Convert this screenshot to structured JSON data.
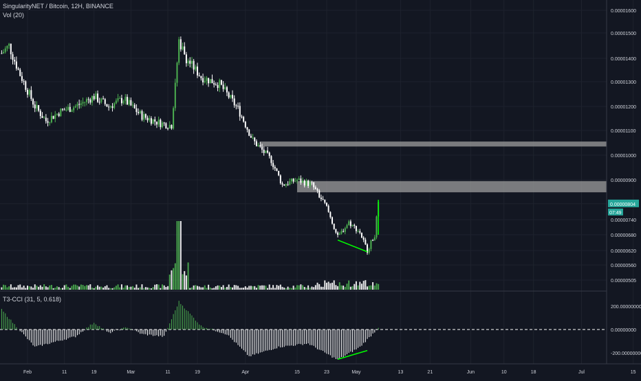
{
  "header": {
    "title": "SingularityNET / Bitcoin, 12H, BINANCE",
    "volume_label": "Vol (20)"
  },
  "oscillator": {
    "label": "T3-CCI (31, 5, 0.618)",
    "ticks": [
      "200.00000000",
      "0.00000000",
      "-200.00000000"
    ],
    "tick_values": [
      200,
      0,
      -200
    ]
  },
  "price_axis": {
    "ticks": [
      "0.00001600",
      "0.00001500",
      "0.00001400",
      "0.00001300",
      "0.00001200",
      "0.00001100",
      "0.00001000",
      "0.00000900",
      "0.00000804",
      "0.00000740",
      "0.00000680",
      "0.00000620",
      "0.00000560",
      "0.00000505"
    ],
    "tick_values": [
      1600,
      1500,
      1400,
      1300,
      1200,
      1100,
      1000,
      900,
      804,
      740,
      680,
      620,
      560,
      505
    ],
    "current_price": "0.00000804",
    "countdown": "07:49"
  },
  "time_axis": {
    "labels": [
      "Feb",
      "11",
      "19",
      "Mar",
      "11",
      "19",
      "Apr",
      "15",
      "23",
      "May",
      "13",
      "21",
      "Jun",
      "10",
      "18",
      "Jul",
      "15"
    ]
  },
  "colors": {
    "background": "#131722",
    "up": "#4caf50",
    "down": "#ffffff",
    "bright_up": "#00ff00",
    "zone": "#9e9e9e",
    "grid": "#1e222d"
  },
  "chart_data": {
    "type": "candlestick",
    "title": "SingularityNET / Bitcoin, 12H, BINANCE",
    "note_units": "price values in 1e-8 BTC (satoshi)",
    "approx_close_path": [
      {
        "date": "Jan 25",
        "close": 1420
      },
      {
        "date": "Jan 27",
        "close": 1450
      },
      {
        "date": "Jan 30",
        "close": 1330
      },
      {
        "date": "Feb 3",
        "close": 1200
      },
      {
        "date": "Feb 6",
        "close": 1140
      },
      {
        "date": "Feb 10",
        "close": 1180
      },
      {
        "date": "Feb 14",
        "close": 1200
      },
      {
        "date": "Feb 19",
        "close": 1240
      },
      {
        "date": "Feb 23",
        "close": 1200
      },
      {
        "date": "Feb 27",
        "close": 1230
      },
      {
        "date": "Mar 4",
        "close": 1160
      },
      {
        "date": "Mar 9",
        "close": 1130
      },
      {
        "date": "Mar 12",
        "close": 1120
      },
      {
        "date": "Mar 14",
        "close": 1470
      },
      {
        "date": "Mar 16",
        "close": 1400
      },
      {
        "date": "Mar 20",
        "close": 1320
      },
      {
        "date": "Mar 25",
        "close": 1290
      },
      {
        "date": "Mar 30",
        "close": 1190
      },
      {
        "date": "Apr 3",
        "close": 1060
      },
      {
        "date": "Apr 8",
        "close": 980
      },
      {
        "date": "Apr 11",
        "close": 880
      },
      {
        "date": "Apr 15",
        "close": 900
      },
      {
        "date": "Apr 19",
        "close": 880
      },
      {
        "date": "Apr 23",
        "close": 790
      },
      {
        "date": "Apr 26",
        "close": 670
      },
      {
        "date": "Apr 29",
        "close": 730
      },
      {
        "date": "May 2",
        "close": 690
      },
      {
        "date": "May 4",
        "close": 620
      },
      {
        "date": "May 6",
        "close": 680
      },
      {
        "date": "May 7",
        "close": 804
      }
    ],
    "resistance_zones": [
      {
        "from_date": "Apr 5",
        "to_date": "Jul 17",
        "low": 1035,
        "high": 1055
      },
      {
        "from_date": "Apr 15",
        "to_date": "Jul 17",
        "low": 850,
        "high": 895
      }
    ],
    "divergence_line": {
      "from": {
        "date": "Apr 26",
        "value": 660
      },
      "to": {
        "date": "May 4",
        "value": 615
      }
    },
    "volume_spike": {
      "date": "Mar 14"
    },
    "oscillator_points": [
      {
        "date": "Jan 25",
        "value": 170
      },
      {
        "date": "Jan 28",
        "value": 60
      },
      {
        "date": "Feb 3",
        "value": -150
      },
      {
        "date": "Feb 14",
        "value": -60
      },
      {
        "date": "Feb 19",
        "value": 60
      },
      {
        "date": "Feb 23",
        "value": -30
      },
      {
        "date": "Feb 28",
        "value": 20
      },
      {
        "date": "Mar 4",
        "value": -40
      },
      {
        "date": "Mar 10",
        "value": -60
      },
      {
        "date": "Mar 14",
        "value": 240
      },
      {
        "date": "Mar 20",
        "value": 30
      },
      {
        "date": "Mar 27",
        "value": -40
      },
      {
        "date": "Apr 2",
        "value": -230
      },
      {
        "date": "Apr 10",
        "value": -150
      },
      {
        "date": "Apr 18",
        "value": -120
      },
      {
        "date": "Apr 26",
        "value": -260
      },
      {
        "date": "May 2",
        "value": -150
      },
      {
        "date": "May 6",
        "value": -20
      },
      {
        "date": "May 7",
        "value": 20
      }
    ],
    "oscillator_divergence": {
      "from": {
        "date": "Apr 26",
        "value": -255
      },
      "to": {
        "date": "May 4",
        "value": -180
      }
    }
  }
}
